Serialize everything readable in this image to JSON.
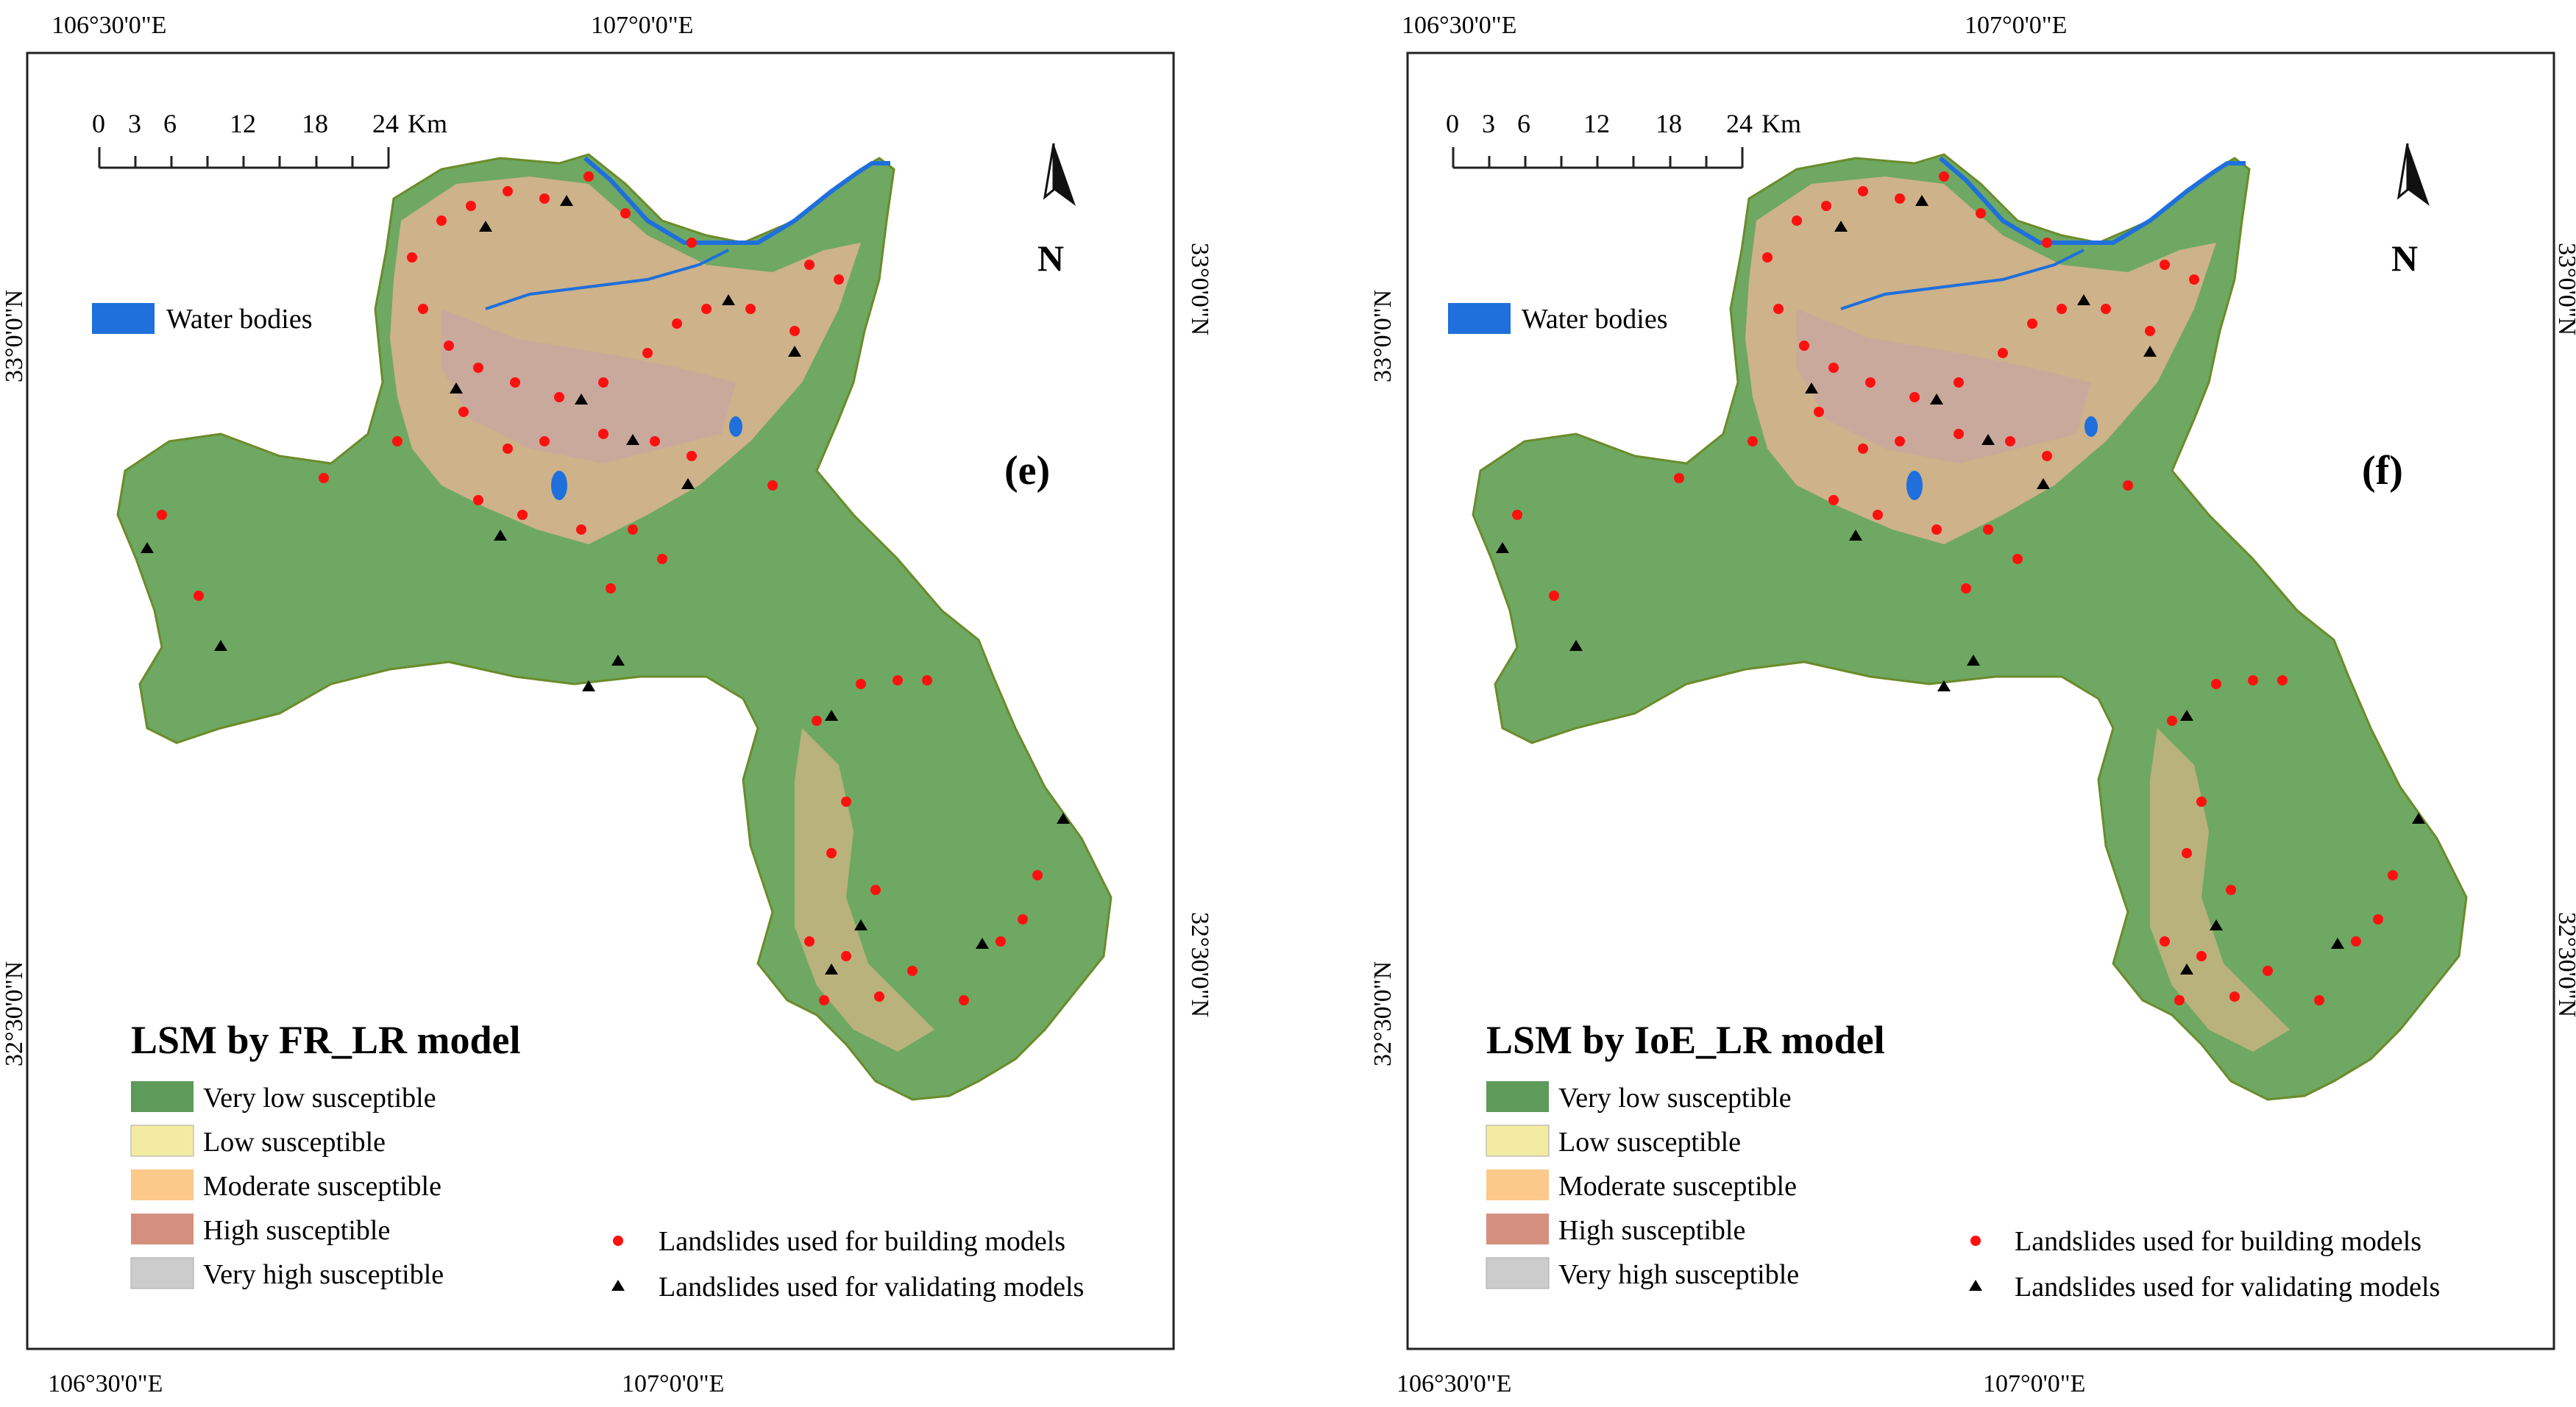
{
  "panels": [
    {
      "tag": "(e)",
      "legend_title": "LSM by FR_LR model",
      "top_lon_labels": [
        "106°30'0\"E",
        "107°0'0\"E"
      ],
      "bottom_lon_labels": [
        "106°30'0\"E",
        "107°0'0\"E"
      ],
      "left_lat_labels": [
        "33°0'0\"N",
        "32°30'0\"N"
      ],
      "right_lat_labels": [
        "33°0'0\"N",
        "32°30'0\"N"
      ]
    },
    {
      "tag": "(f)",
      "legend_title": "LSM by IoE_LR model",
      "top_lon_labels": [
        "106°30'0\"E",
        "107°0'0\"E"
      ],
      "bottom_lon_labels": [
        "106°30'0\"E",
        "107°0'0\"E"
      ],
      "left_lat_labels": [
        "33°0'0\"N",
        "32°30'0\"N"
      ],
      "right_lat_labels": [
        "33°0'0\"N",
        "32°30'0\"N"
      ]
    }
  ],
  "scale_bar": {
    "ticks": [
      "0",
      "3",
      "6",
      "12",
      "18",
      "24"
    ],
    "unit": "Km"
  },
  "north_letter": "N",
  "water_label": "Water bodies",
  "susceptibility_classes": [
    {
      "label": "Very low susceptible",
      "color": "#5e9a5a"
    },
    {
      "label": "Low susceptible",
      "color": "#f3eba2"
    },
    {
      "label": "Moderate susceptible",
      "color": "#fbc98a"
    },
    {
      "label": "High susceptible",
      "color": "#d58f7e"
    },
    {
      "label": "Very high susceptible",
      "color": "#cccccc"
    }
  ],
  "landslide_legend": {
    "building": "Landslides used for building models",
    "validating": "Landslides used for validating models"
  },
  "colors": {
    "water": "#1f6fdc",
    "building_point": "#ff1010",
    "validating_point": "#000000",
    "frame": "#222222"
  }
}
